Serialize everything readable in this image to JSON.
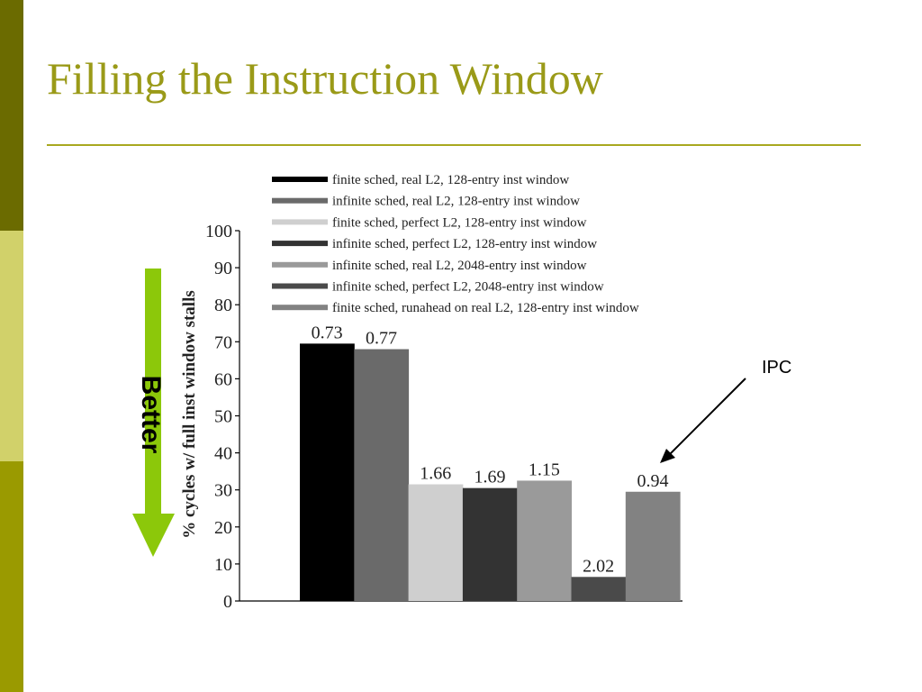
{
  "slide": {
    "title": "Filling the Instruction Window",
    "better_label": "Better",
    "ipc_annotation": "IPC"
  },
  "colors": {
    "sidebar": [
      "#6b6b00",
      "#d1d16a",
      "#9a9a00"
    ],
    "title": "#9a9a18",
    "better_arrow": "#8cc80a"
  },
  "chart_data": {
    "type": "bar",
    "title": "",
    "xlabel": "",
    "ylabel": "% cycles w/ full inst window stalls",
    "ylim": [
      0,
      100
    ],
    "yticks": [
      0,
      10,
      20,
      30,
      40,
      50,
      60,
      70,
      80,
      90,
      100
    ],
    "legend_position": "top",
    "series": [
      {
        "name": "finite sched, real L2, 128-entry inst window",
        "value": 69.5,
        "ipc": "0.73",
        "color": "#000000"
      },
      {
        "name": "infinite sched, real L2, 128-entry inst window",
        "value": 68,
        "ipc": "0.77",
        "color": "#6a6a6a"
      },
      {
        "name": "finite sched, perfect L2, 128-entry inst window",
        "value": 31.5,
        "ipc": "1.66",
        "color": "#cfcfcf"
      },
      {
        "name": "infinite sched, perfect L2, 128-entry inst window",
        "value": 30.5,
        "ipc": "1.69",
        "color": "#333333"
      },
      {
        "name": "infinite sched, real L2, 2048-entry inst window",
        "value": 32.5,
        "ipc": "1.15",
        "color": "#9a9a9a"
      },
      {
        "name": "infinite sched, perfect L2, 2048-entry inst window",
        "value": 6.5,
        "ipc": "2.02",
        "color": "#4a4a4a"
      },
      {
        "name": "finite sched, runahead on real L2, 128-entry inst window",
        "value": 29.5,
        "ipc": "0.94",
        "color": "#828282"
      }
    ]
  }
}
